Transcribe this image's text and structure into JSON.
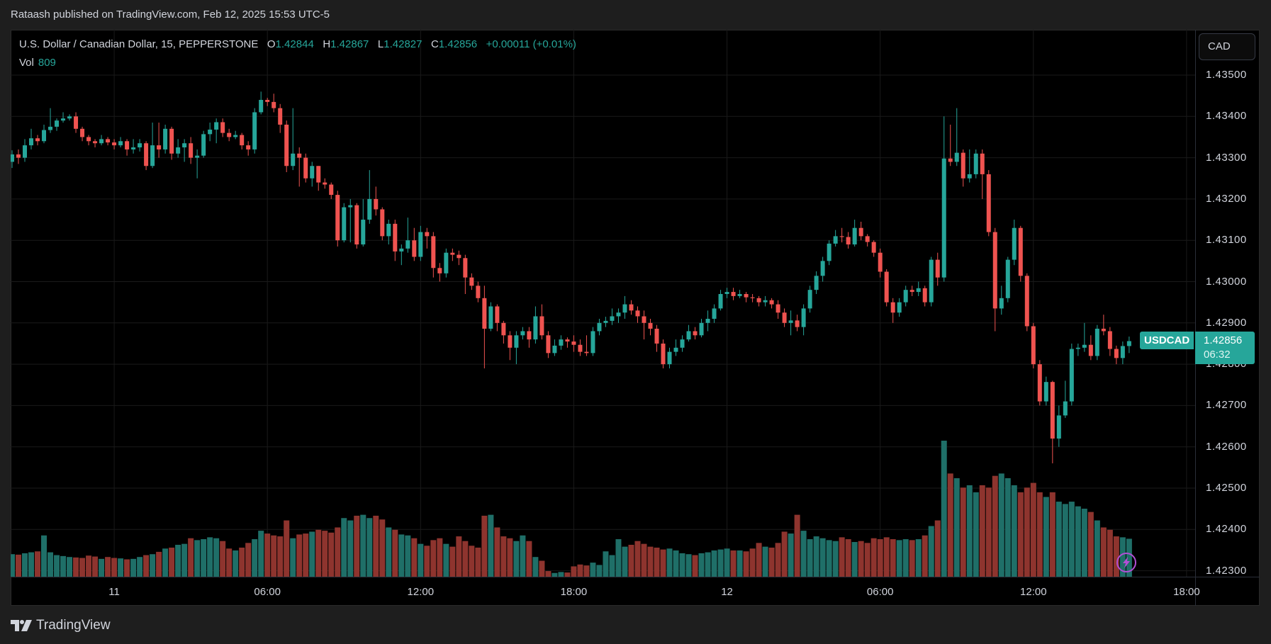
{
  "header": {
    "published": "Rataash published on TradingView.com, Feb 12, 2025 15:53 UTC-5"
  },
  "legend": {
    "symbol": "U.S. Dollar / Canadian Dollar, 15, PEPPERSTONE",
    "o_label": "O",
    "o": "1.42844",
    "h_label": "H",
    "h": "1.42867",
    "l_label": "L",
    "l": "1.42827",
    "c_label": "C",
    "c": "1.42856",
    "change": "+0.00011 (+0.01%)",
    "vol_label": "Vol",
    "vol": "809"
  },
  "currency_button": "CAD",
  "last_price": {
    "symbol": "USDCAD",
    "price": "1.42856",
    "countdown": "06:32",
    "value": 1.42856
  },
  "brand": "TradingView",
  "colors": {
    "up": "#26a69a",
    "down": "#ef5350",
    "vol_up": "#1f6f68",
    "vol_down": "#8e342e",
    "alert": "#b24fd6"
  },
  "icons": {
    "alert": "lightning-icon",
    "logo": "tradingview-logo"
  },
  "chart_data": {
    "type": "candlestick",
    "interval": "15",
    "price_ticks": [
      {
        "value": 1.435,
        "label": "1.43500"
      },
      {
        "value": 1.434,
        "label": "1.43400"
      },
      {
        "value": 1.433,
        "label": "1.43300"
      },
      {
        "value": 1.432,
        "label": "1.43200"
      },
      {
        "value": 1.431,
        "label": "1.43100"
      },
      {
        "value": 1.43,
        "label": "1.43000"
      },
      {
        "value": 1.429,
        "label": "1.42900"
      },
      {
        "value": 1.428,
        "label": "1.42800"
      },
      {
        "value": 1.427,
        "label": "1.42700"
      },
      {
        "value": 1.426,
        "label": "1.42600"
      },
      {
        "value": 1.425,
        "label": "1.42500"
      },
      {
        "value": 1.424,
        "label": "1.42400"
      },
      {
        "value": 1.423,
        "label": "1.42300"
      }
    ],
    "time_ticks": [
      "11",
      "06:00",
      "12:00",
      "18:00",
      "12",
      "06:00",
      "12:00",
      "18:00"
    ],
    "ylim": [
      1.4228,
      1.4361
    ],
    "grid": true,
    "candles_ohlcv": [
      [
        1.4329,
        1.43318,
        1.43275,
        1.43308,
        480
      ],
      [
        1.43308,
        1.4332,
        1.43285,
        1.433,
        470
      ],
      [
        1.433,
        1.43345,
        1.4329,
        1.4333,
        500
      ],
      [
        1.4333,
        1.4337,
        1.4332,
        1.43347,
        520
      ],
      [
        1.43347,
        1.43355,
        1.4333,
        1.4334,
        540
      ],
      [
        1.4334,
        1.4338,
        1.43335,
        1.43367,
        880
      ],
      [
        1.43367,
        1.4342,
        1.4336,
        1.43375,
        520
      ],
      [
        1.43375,
        1.43395,
        1.43365,
        1.4339,
        460
      ],
      [
        1.4339,
        1.4341,
        1.43385,
        1.43395,
        440
      ],
      [
        1.43395,
        1.43405,
        1.4339,
        1.434,
        420
      ],
      [
        1.434,
        1.4341,
        1.4336,
        1.4337,
        410
      ],
      [
        1.4337,
        1.43375,
        1.4334,
        1.4335,
        400
      ],
      [
        1.4335,
        1.43355,
        1.4333,
        1.4334,
        450
      ],
      [
        1.4334,
        1.43345,
        1.43325,
        1.43335,
        430
      ],
      [
        1.43335,
        1.43355,
        1.4333,
        1.43345,
        380
      ],
      [
        1.43345,
        1.4335,
        1.4333,
        1.43337,
        420
      ],
      [
        1.43337,
        1.43345,
        1.4332,
        1.4333,
        400
      ],
      [
        1.4333,
        1.4335,
        1.43325,
        1.4334,
        390
      ],
      [
        1.4334,
        1.43345,
        1.43305,
        1.4332,
        370
      ],
      [
        1.4332,
        1.43345,
        1.4331,
        1.43325,
        380
      ],
      [
        1.43325,
        1.43345,
        1.43315,
        1.43335,
        420
      ],
      [
        1.43335,
        1.4334,
        1.4327,
        1.4328,
        460
      ],
      [
        1.4328,
        1.43385,
        1.43275,
        1.4333,
        480
      ],
      [
        1.4333,
        1.43385,
        1.433,
        1.4332,
        530
      ],
      [
        1.4332,
        1.4338,
        1.4331,
        1.4337,
        600
      ],
      [
        1.4337,
        1.43375,
        1.43295,
        1.4331,
        620
      ],
      [
        1.4331,
        1.43345,
        1.433,
        1.43325,
        680
      ],
      [
        1.43325,
        1.43345,
        1.4329,
        1.43335,
        700
      ],
      [
        1.43335,
        1.4335,
        1.43285,
        1.433,
        820
      ],
      [
        1.433,
        1.4332,
        1.4325,
        1.43305,
        780
      ],
      [
        1.43305,
        1.43365,
        1.433,
        1.43357,
        800
      ],
      [
        1.43357,
        1.43385,
        1.4334,
        1.43368,
        840
      ],
      [
        1.43368,
        1.43395,
        1.43335,
        1.43386,
        820
      ],
      [
        1.43386,
        1.43395,
        1.4335,
        1.4336,
        760
      ],
      [
        1.4336,
        1.4337,
        1.4334,
        1.4335,
        600
      ],
      [
        1.4335,
        1.43365,
        1.43345,
        1.43355,
        560
      ],
      [
        1.43355,
        1.4336,
        1.4332,
        1.4333,
        620
      ],
      [
        1.4333,
        1.4334,
        1.43305,
        1.4332,
        720
      ],
      [
        1.4332,
        1.4342,
        1.4331,
        1.4341,
        800
      ],
      [
        1.4341,
        1.4346,
        1.43405,
        1.4344,
        980
      ],
      [
        1.4344,
        1.43445,
        1.43425,
        1.43435,
        920
      ],
      [
        1.43435,
        1.43455,
        1.4341,
        1.4342,
        880
      ],
      [
        1.4342,
        1.4343,
        1.4336,
        1.4338,
        860
      ],
      [
        1.4338,
        1.4339,
        1.43265,
        1.4328,
        1200
      ],
      [
        1.4328,
        1.4342,
        1.4327,
        1.4331,
        820
      ],
      [
        1.4331,
        1.43325,
        1.4323,
        1.433,
        900
      ],
      [
        1.433,
        1.4331,
        1.4324,
        1.4325,
        920
      ],
      [
        1.4325,
        1.4329,
        1.4323,
        1.4328,
        960
      ],
      [
        1.4328,
        1.4328,
        1.4322,
        1.4324,
        1000
      ],
      [
        1.4324,
        1.4325,
        1.43225,
        1.43235,
        980
      ],
      [
        1.43235,
        1.4324,
        1.432,
        1.4321,
        940
      ],
      [
        1.4321,
        1.4322,
        1.43085,
        1.431,
        1050
      ],
      [
        1.431,
        1.4319,
        1.43095,
        1.4318,
        1250
      ],
      [
        1.4318,
        1.432,
        1.43095,
        1.43185,
        1200
      ],
      [
        1.43185,
        1.4319,
        1.4308,
        1.4309,
        1300
      ],
      [
        1.4309,
        1.432,
        1.43085,
        1.4315,
        1320
      ],
      [
        1.4315,
        1.4327,
        1.4314,
        1.432,
        1250
      ],
      [
        1.432,
        1.4323,
        1.4316,
        1.43175,
        1300
      ],
      [
        1.43175,
        1.4318,
        1.431,
        1.4311,
        1220
      ],
      [
        1.4311,
        1.4315,
        1.4309,
        1.4314,
        1050
      ],
      [
        1.4314,
        1.4315,
        1.4305,
        1.43073,
        1000
      ],
      [
        1.43073,
        1.4309,
        1.4304,
        1.4308,
        900
      ],
      [
        1.4308,
        1.43155,
        1.4307,
        1.431,
        880
      ],
      [
        1.431,
        1.4313,
        1.4305,
        1.4306,
        820
      ],
      [
        1.4306,
        1.43135,
        1.4305,
        1.4312,
        700
      ],
      [
        1.4312,
        1.4313,
        1.4308,
        1.4311,
        660
      ],
      [
        1.4311,
        1.4312,
        1.4301,
        1.43033,
        780
      ],
      [
        1.43033,
        1.43045,
        1.43,
        1.4302,
        820
      ],
      [
        1.4302,
        1.4308,
        1.4301,
        1.4307,
        700
      ],
      [
        1.4307,
        1.4308,
        1.4305,
        1.43065,
        640
      ],
      [
        1.43065,
        1.43075,
        1.4304,
        1.43057,
        860
      ],
      [
        1.43057,
        1.43065,
        1.4297,
        1.4301,
        760
      ],
      [
        1.4301,
        1.4302,
        1.4298,
        1.4299,
        660
      ],
      [
        1.4299,
        1.43,
        1.4295,
        1.4296,
        620
      ],
      [
        1.4296,
        1.4299,
        1.4279,
        1.42886,
        1300
      ],
      [
        1.42886,
        1.4295,
        1.4288,
        1.4294,
        1320
      ],
      [
        1.4294,
        1.42945,
        1.4288,
        1.429,
        1050
      ],
      [
        1.429,
        1.42905,
        1.4285,
        1.4287,
        860
      ],
      [
        1.4287,
        1.4288,
        1.4281,
        1.4284,
        820
      ],
      [
        1.4284,
        1.4288,
        1.428,
        1.4287,
        760
      ],
      [
        1.4287,
        1.4289,
        1.4286,
        1.4288,
        880
      ],
      [
        1.4288,
        1.4289,
        1.4284,
        1.4286,
        760
      ],
      [
        1.4286,
        1.4294,
        1.4285,
        1.42916,
        420
      ],
      [
        1.42916,
        1.42945,
        1.4286,
        1.4287,
        340
      ],
      [
        1.4287,
        1.4288,
        1.42815,
        1.42827,
        120
      ],
      [
        1.42827,
        1.4286,
        1.4282,
        1.42845,
        80
      ],
      [
        1.42845,
        1.4287,
        1.42835,
        1.4286,
        100
      ],
      [
        1.4286,
        1.42865,
        1.4284,
        1.42855,
        90
      ],
      [
        1.42855,
        1.4287,
        1.4283,
        1.42847,
        220
      ],
      [
        1.42847,
        1.4286,
        1.4282,
        1.4283,
        260
      ],
      [
        1.4283,
        1.4287,
        1.4282,
        1.42827,
        240
      ],
      [
        1.42827,
        1.4289,
        1.4282,
        1.4288,
        300
      ],
      [
        1.4288,
        1.4291,
        1.4287,
        1.429,
        250
      ],
      [
        1.429,
        1.42915,
        1.4289,
        1.42905,
        540
      ],
      [
        1.42905,
        1.42935,
        1.42895,
        1.42916,
        460
      ],
      [
        1.42916,
        1.42935,
        1.429,
        1.42925,
        800
      ],
      [
        1.42925,
        1.42965,
        1.4291,
        1.42945,
        640
      ],
      [
        1.42945,
        1.42955,
        1.4292,
        1.4293,
        680
      ],
      [
        1.4293,
        1.4294,
        1.429,
        1.42916,
        760
      ],
      [
        1.42916,
        1.4293,
        1.4286,
        1.429,
        700
      ],
      [
        1.429,
        1.4291,
        1.4287,
        1.42886,
        640
      ],
      [
        1.42886,
        1.42895,
        1.4283,
        1.4285,
        620
      ],
      [
        1.4285,
        1.4286,
        1.4279,
        1.428,
        580
      ],
      [
        1.428,
        1.4284,
        1.4279,
        1.4283,
        600
      ],
      [
        1.4283,
        1.4286,
        1.4282,
        1.4284,
        560
      ],
      [
        1.4284,
        1.4287,
        1.4283,
        1.4286,
        500
      ],
      [
        1.4286,
        1.42895,
        1.42855,
        1.4288,
        480
      ],
      [
        1.4288,
        1.4289,
        1.4286,
        1.4287,
        460
      ],
      [
        1.4287,
        1.4291,
        1.42865,
        1.429,
        500
      ],
      [
        1.429,
        1.4293,
        1.4288,
        1.4291,
        520
      ],
      [
        1.4291,
        1.42945,
        1.429,
        1.42935,
        560
      ],
      [
        1.42935,
        1.4298,
        1.4293,
        1.4297,
        580
      ],
      [
        1.4297,
        1.42985,
        1.4296,
        1.42975,
        600
      ],
      [
        1.42975,
        1.42985,
        1.42955,
        1.42965,
        560
      ],
      [
        1.42965,
        1.4298,
        1.4296,
        1.4297,
        560
      ],
      [
        1.4297,
        1.42975,
        1.4295,
        1.42962,
        540
      ],
      [
        1.42962,
        1.4297,
        1.4295,
        1.4296,
        600
      ],
      [
        1.4296,
        1.42965,
        1.4294,
        1.4295,
        720
      ],
      [
        1.4295,
        1.42965,
        1.4294,
        1.42955,
        640
      ],
      [
        1.42955,
        1.4296,
        1.42935,
        1.42945,
        620
      ],
      [
        1.42945,
        1.42955,
        1.4291,
        1.42925,
        720
      ],
      [
        1.42925,
        1.42935,
        1.4289,
        1.429,
        960
      ],
      [
        1.429,
        1.4293,
        1.4287,
        1.42906,
        920
      ],
      [
        1.42906,
        1.4292,
        1.4288,
        1.4289,
        1320
      ],
      [
        1.4289,
        1.42945,
        1.4287,
        1.42935,
        980
      ],
      [
        1.42935,
        1.4299,
        1.42925,
        1.4298,
        800
      ],
      [
        1.4298,
        1.43025,
        1.4297,
        1.43014,
        860
      ],
      [
        1.43014,
        1.4306,
        1.43,
        1.4305,
        820
      ],
      [
        1.4305,
        1.431,
        1.4304,
        1.43092,
        780
      ],
      [
        1.43092,
        1.43125,
        1.43085,
        1.4311,
        760
      ],
      [
        1.4311,
        1.4313,
        1.43095,
        1.43108,
        840
      ],
      [
        1.43108,
        1.4312,
        1.4308,
        1.4309,
        800
      ],
      [
        1.4309,
        1.4315,
        1.43085,
        1.4313,
        740
      ],
      [
        1.4313,
        1.43145,
        1.431,
        1.4311,
        760
      ],
      [
        1.4311,
        1.43115,
        1.43085,
        1.43096,
        720
      ],
      [
        1.43096,
        1.431,
        1.4306,
        1.4307,
        820
      ],
      [
        1.4307,
        1.4308,
        1.4301,
        1.43024,
        800
      ],
      [
        1.43024,
        1.4303,
        1.4294,
        1.4295,
        840
      ],
      [
        1.4295,
        1.4296,
        1.429,
        1.42925,
        800
      ],
      [
        1.42925,
        1.4296,
        1.42915,
        1.4295,
        780
      ],
      [
        1.4295,
        1.4299,
        1.4294,
        1.4298,
        800
      ],
      [
        1.4298,
        1.4299,
        1.42965,
        1.42975,
        780
      ],
      [
        1.42975,
        1.43,
        1.42965,
        1.42984,
        800
      ],
      [
        1.42984,
        1.4299,
        1.4294,
        1.4295,
        880
      ],
      [
        1.4295,
        1.4306,
        1.4294,
        1.43053,
        1080
      ],
      [
        1.43053,
        1.4307,
        1.4299,
        1.4301,
        1200
      ],
      [
        1.4301,
        1.434,
        1.43,
        1.43298,
        2900
      ],
      [
        1.43298,
        1.4338,
        1.4328,
        1.4329,
        2200
      ],
      [
        1.4329,
        1.4342,
        1.4328,
        1.43312,
        2100
      ],
      [
        1.43312,
        1.4332,
        1.4323,
        1.4325,
        1900
      ],
      [
        1.4325,
        1.4332,
        1.4324,
        1.4326,
        1950
      ],
      [
        1.4326,
        1.4332,
        1.4325,
        1.4331,
        1800
      ],
      [
        1.4331,
        1.4332,
        1.432,
        1.4326,
        1950
      ],
      [
        1.4326,
        1.4327,
        1.4311,
        1.4312,
        1900
      ],
      [
        1.4312,
        1.4313,
        1.4288,
        1.42935,
        2150
      ],
      [
        1.42935,
        1.4299,
        1.4292,
        1.4296,
        2200
      ],
      [
        1.4296,
        1.4306,
        1.4295,
        1.43053,
        2100
      ],
      [
        1.43053,
        1.4315,
        1.4304,
        1.4313,
        1950
      ],
      [
        1.4313,
        1.43135,
        1.43,
        1.43014,
        1800
      ],
      [
        1.43014,
        1.4302,
        1.4288,
        1.42892,
        1900
      ],
      [
        1.42892,
        1.429,
        1.4279,
        1.428,
        2000
      ],
      [
        1.428,
        1.4281,
        1.427,
        1.4271,
        1800
      ],
      [
        1.4271,
        1.4277,
        1.427,
        1.42757,
        1700
      ],
      [
        1.42757,
        1.4276,
        1.4256,
        1.4262,
        1800
      ],
      [
        1.4262,
        1.427,
        1.426,
        1.42676,
        1600
      ],
      [
        1.42676,
        1.4276,
        1.4267,
        1.4271,
        1550
      ],
      [
        1.4271,
        1.4285,
        1.427,
        1.42837,
        1600
      ],
      [
        1.42837,
        1.4285,
        1.4282,
        1.4284,
        1500
      ],
      [
        1.4284,
        1.429,
        1.4283,
        1.42847,
        1450
      ],
      [
        1.42847,
        1.4287,
        1.4281,
        1.4282,
        1380
      ],
      [
        1.4282,
        1.42895,
        1.4281,
        1.42886,
        1200
      ],
      [
        1.42886,
        1.4292,
        1.4287,
        1.4288,
        1050
      ],
      [
        1.4288,
        1.4289,
        1.4282,
        1.42837,
        1000
      ],
      [
        1.42837,
        1.42845,
        1.428,
        1.42815,
        860
      ],
      [
        1.42815,
        1.42855,
        1.428,
        1.42844,
        840
      ],
      [
        1.42844,
        1.42867,
        1.42827,
        1.42856,
        809
      ]
    ]
  }
}
